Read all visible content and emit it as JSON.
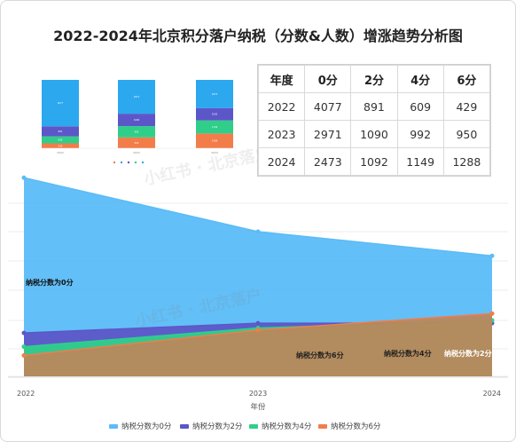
{
  "chart_data": [
    {
      "type": "area",
      "title": "2022-2024年北京积分落户纳税（分数&人数）增涨趋势分析图",
      "xlabel": "年份",
      "ylabel": "",
      "categories": [
        "2022",
        "2023",
        "2024"
      ],
      "stacked": false,
      "series": [
        {
          "name": "纳税分数为0分",
          "values": [
            4077,
            2971,
            2473
          ],
          "color": "#5bbcf7"
        },
        {
          "name": "纳税分数为2分",
          "values": [
            891,
            1090,
            1092
          ],
          "color": "#5c57c8"
        },
        {
          "name": "纳税分数为4分",
          "values": [
            609,
            992,
            1149
          ],
          "color": "#2fcf8a"
        },
        {
          "name": "纳税分数为6分",
          "values": [
            429,
            950,
            1288
          ],
          "color": "#f27d4a"
        }
      ],
      "annotations": [
        "纳税分数为0分",
        "纳税分数为6分",
        "纳税分数为4分",
        "纳税分数为2分"
      ],
      "legend_position": "bottom",
      "grid": true
    },
    {
      "type": "bar",
      "stacked": true,
      "categories": [
        "2022",
        "2023",
        "2024"
      ],
      "series": [
        {
          "values": [
            429,
            950,
            1288
          ],
          "color": "#f27d4a"
        },
        {
          "values": [
            609,
            992,
            1149
          ],
          "color": "#2fcf8a"
        },
        {
          "values": [
            891,
            1090,
            1092
          ],
          "color": "#5c57c8"
        },
        {
          "values": [
            4077,
            2971,
            2473
          ],
          "color": "#2ca8ef"
        }
      ]
    },
    {
      "type": "table",
      "columns": [
        "年度",
        "0分",
        "2分",
        "4分",
        "6分"
      ],
      "rows": [
        [
          "2022",
          "4077",
          "891",
          "609",
          "429"
        ],
        [
          "2023",
          "2971",
          "1090",
          "992",
          "950"
        ],
        [
          "2024",
          "2473",
          "1092",
          "1149",
          "1288"
        ]
      ]
    }
  ]
}
